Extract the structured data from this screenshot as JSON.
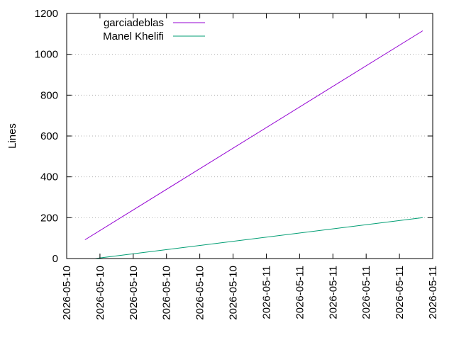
{
  "chart_data": {
    "type": "line",
    "title": "",
    "xlabel": "",
    "ylabel": "Lines",
    "ylim": [
      0,
      1200
    ],
    "yticks": [
      0,
      200,
      400,
      600,
      800,
      1000,
      1200
    ],
    "xticks": [
      "2026-05-10",
      "2026-05-10",
      "2026-05-10",
      "2026-05-10",
      "2026-05-10",
      "2026-05-10",
      "2026-05-11",
      "2026-05-11",
      "2026-05-11",
      "2026-05-11",
      "2026-05-11",
      "2026-05-11"
    ],
    "grid": true,
    "legend_position": "top-left",
    "series": [
      {
        "name": "garciadeblas",
        "color": "#9400d3",
        "points": [
          {
            "x": "2026-05-10",
            "y": 92
          },
          {
            "x": "2026-05-11",
            "y": 1115
          }
        ]
      },
      {
        "name": "Manel Khelifi",
        "color": "#009e73",
        "points": [
          {
            "x": "2026-05-10",
            "y": 0
          },
          {
            "x": "2026-05-11",
            "y": 200
          }
        ]
      }
    ]
  }
}
